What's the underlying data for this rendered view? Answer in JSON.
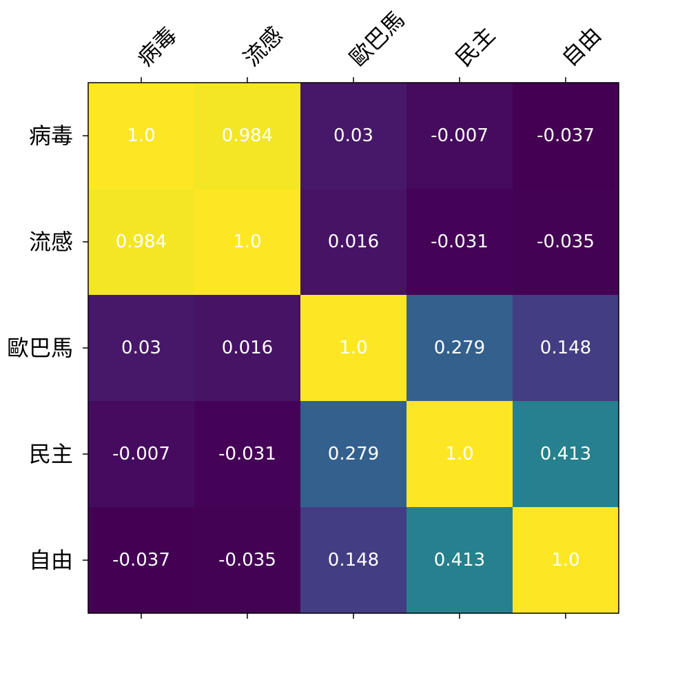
{
  "chart_data": {
    "type": "heatmap",
    "title": "",
    "xlabel": "",
    "ylabel": "",
    "x_categories": [
      "病毒",
      "流感",
      "歐巴馬",
      "民主",
      "自由"
    ],
    "y_categories": [
      "病毒",
      "流感",
      "歐巴馬",
      "民主",
      "自由"
    ],
    "values": [
      [
        1.0,
        0.984,
        0.03,
        -0.007,
        -0.037
      ],
      [
        0.984,
        1.0,
        0.016,
        -0.031,
        -0.035
      ],
      [
        0.03,
        0.016,
        1.0,
        0.279,
        0.148
      ],
      [
        -0.007,
        -0.031,
        0.279,
        1.0,
        0.413
      ],
      [
        -0.037,
        -0.035,
        0.148,
        0.413,
        1.0
      ]
    ],
    "value_labels": [
      [
        "1.0",
        "0.984",
        "0.03",
        "-0.007",
        "-0.037"
      ],
      [
        "0.984",
        "1.0",
        "0.016",
        "-0.031",
        "-0.035"
      ],
      [
        "0.03",
        "0.016",
        "1.0",
        "0.279",
        "0.148"
      ],
      [
        "-0.007",
        "-0.031",
        "0.279",
        "1.0",
        "0.413"
      ],
      [
        "-0.037",
        "-0.035",
        "0.148",
        "0.413",
        "1.0"
      ]
    ],
    "colormap": "viridis",
    "x_tick_position": "top",
    "x_tick_rotation_deg": -45,
    "grid": false,
    "legend": "none"
  }
}
